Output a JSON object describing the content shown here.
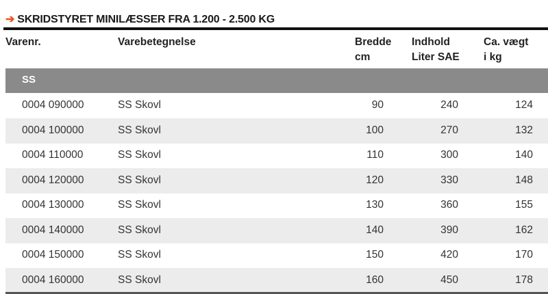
{
  "title": "SKRIDSTYRET MINILÆSSER FRA 1.200 - 2.500 KG",
  "title_icon": "arrow-right-icon",
  "accent_color": "#e8561b",
  "headers": {
    "varenr": "Varenr.",
    "varebetegnelse": "Varebetegnelse",
    "bredde_1": "Bredde",
    "bredde_2": "cm",
    "indhold_1": "Indhold",
    "indhold_2": "Liter SAE",
    "vaegt_1": "Ca. vægt",
    "vaegt_2": "i kg"
  },
  "group": "SS",
  "rows": [
    {
      "varenr": "0004 090000",
      "name": "SS Skovl",
      "bredde": "90",
      "indhold": "240",
      "vaegt": "124"
    },
    {
      "varenr": "0004 100000",
      "name": "SS Skovl",
      "bredde": "100",
      "indhold": "270",
      "vaegt": "132"
    },
    {
      "varenr": "0004 110000",
      "name": "SS Skovl",
      "bredde": "110",
      "indhold": "300",
      "vaegt": "140"
    },
    {
      "varenr": "0004 120000",
      "name": "SS Skovl",
      "bredde": "120",
      "indhold": "330",
      "vaegt": "148"
    },
    {
      "varenr": "0004 130000",
      "name": "SS Skovl",
      "bredde": "130",
      "indhold": "360",
      "vaegt": "155"
    },
    {
      "varenr": "0004 140000",
      "name": "SS Skovl",
      "bredde": "140",
      "indhold": "390",
      "vaegt": "162"
    },
    {
      "varenr": "0004 150000",
      "name": "SS Skovl",
      "bredde": "150",
      "indhold": "420",
      "vaegt": "170"
    },
    {
      "varenr": "0004 160000",
      "name": "SS Skovl",
      "bredde": "160",
      "indhold": "450",
      "vaegt": "178"
    }
  ]
}
